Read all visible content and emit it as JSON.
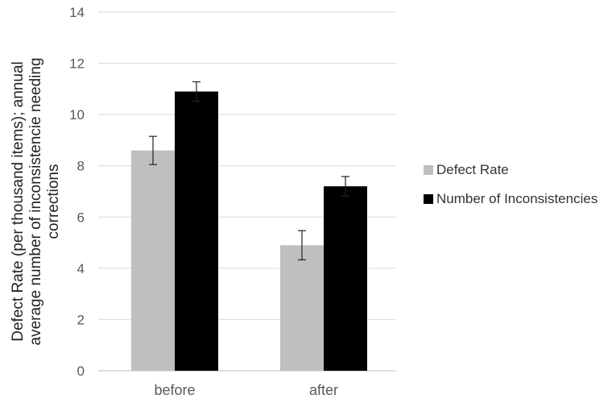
{
  "chart_data": {
    "type": "bar",
    "title": "",
    "xlabel": "",
    "ylabel_lines": [
      "Defect Rate (per thousand items); annual",
      "average number of inconsistencie needing",
      "corrections"
    ],
    "categories": [
      "before",
      "after"
    ],
    "ylim": [
      0,
      14
    ],
    "yticks": [
      0,
      2,
      4,
      6,
      8,
      10,
      12,
      14
    ],
    "grid": true,
    "legend_position": "right",
    "series": [
      {
        "name": "Defect Rate",
        "color": "#bfbfbf",
        "values": [
          8.6,
          4.9
        ],
        "error": [
          0.55,
          0.57
        ]
      },
      {
        "name": "Number of Inconsistencies",
        "color": "#000000",
        "values": [
          10.9,
          7.2
        ],
        "error": [
          0.38,
          0.38
        ]
      }
    ]
  }
}
